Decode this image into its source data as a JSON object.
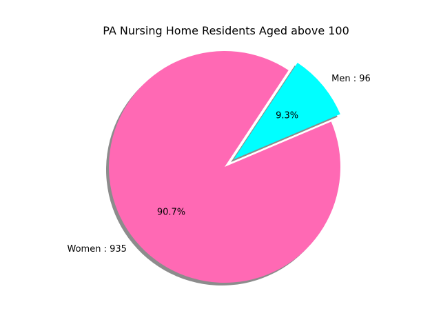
{
  "chart_data": {
    "type": "pie",
    "title": "PA Nursing Home Residents Aged above 100",
    "slices": [
      {
        "name": "Women",
        "value": 935,
        "label": "Women : 935",
        "pct_label": "90.7%",
        "color": "#ff69b4",
        "exploded": false
      },
      {
        "name": "Men",
        "value": 96,
        "label": "Men : 96",
        "pct_label": "9.3%",
        "color": "#00ffff",
        "exploded": true
      }
    ],
    "shadow": true,
    "legend": "none"
  }
}
